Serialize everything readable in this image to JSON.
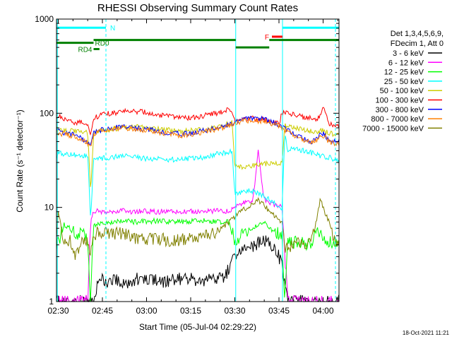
{
  "chart_data": {
    "type": "line",
    "title": "RHESSI Observing Summary Count Rates",
    "xlabel": "Start Time (05-Jul-04 02:29:22)",
    "ylabel": "Count Rate (s⁻¹ detector⁻¹)",
    "x_ticks": [
      "02:30",
      "02:45",
      "03:00",
      "03:15",
      "03:30",
      "03:45",
      "04:00"
    ],
    "x_tick_minutes": [
      30,
      45,
      60,
      75,
      90,
      105,
      120
    ],
    "x_range_minutes": [
      29.4,
      125.4
    ],
    "y_scale": "log",
    "ylim": [
      1,
      1000
    ],
    "y_ticks": [
      1,
      10,
      100,
      1000
    ],
    "y_tick_labels": [
      "1",
      "10",
      "100",
      "1000"
    ],
    "footer": "18-Oct-2021 11:21",
    "legend_header": [
      "Det 1,3,4,5,6,9,",
      "FDecim 1, Att 0"
    ],
    "legend_position": "right",
    "series": [
      {
        "name": "3 - 6 keV",
        "color": "#000000",
        "x": [
          29.4,
          40,
          41,
          42,
          44,
          46,
          50,
          54,
          58,
          62,
          66,
          70,
          74,
          78,
          82,
          86,
          88,
          89,
          90,
          92,
          94,
          96,
          98,
          100,
          102,
          104,
          106,
          108
        ],
        "y": [
          1,
          1,
          1,
          1,
          1.8,
          1.6,
          1.7,
          1.6,
          1.8,
          1.7,
          1.6,
          1.7,
          1.8,
          1.6,
          1.7,
          1.8,
          2.2,
          2.6,
          3,
          3.4,
          3.6,
          3.8,
          4.2,
          4.5,
          4,
          3.5,
          2.5,
          1
        ]
      },
      {
        "name": "6 - 12 keV",
        "color": "#ff00ff",
        "x": [
          29.4,
          30,
          31,
          39,
          40,
          41,
          42,
          44,
          48,
          52,
          56,
          60,
          64,
          68,
          72,
          76,
          80,
          84,
          88,
          89,
          90,
          92,
          94,
          96,
          97,
          98,
          99,
          100,
          101,
          102,
          104,
          106,
          108,
          122
        ],
        "y": [
          1,
          1,
          1,
          1,
          1,
          6.8,
          9,
          9.1,
          9,
          9.2,
          9,
          9.1,
          9,
          9.2,
          9,
          9.1,
          9,
          9.2,
          9,
          9.5,
          10,
          11,
          11.5,
          12,
          20,
          40,
          20,
          12,
          11.5,
          11,
          10.5,
          10,
          1,
          1
        ]
      },
      {
        "name": "12 - 25 keV",
        "color": "#00ff00",
        "x": [
          29.4,
          32,
          34,
          36,
          38,
          40,
          41,
          42,
          44,
          48,
          52,
          56,
          60,
          64,
          68,
          72,
          76,
          80,
          84,
          88,
          90,
          92,
          94,
          96,
          98,
          100,
          102,
          104,
          106,
          107,
          108,
          112,
          116,
          118,
          120,
          122,
          124
        ],
        "y": [
          3.8,
          6.5,
          6,
          5,
          6,
          4.5,
          1,
          6.5,
          6.8,
          7,
          7.2,
          7,
          7.1,
          7.2,
          7,
          7,
          7.1,
          7.2,
          7,
          7,
          4.5,
          5,
          5.5,
          6,
          6.5,
          7,
          6,
          5.5,
          5,
          1,
          4.2,
          4.3,
          4,
          6,
          4.5,
          4.2,
          4.4
        ]
      },
      {
        "name": "25 - 50 keV",
        "color": "#00ffff",
        "x": [
          29.4,
          30,
          32,
          36,
          38,
          40,
          41,
          42,
          44,
          48,
          52,
          56,
          60,
          64,
          68,
          72,
          76,
          80,
          84,
          88,
          89,
          90,
          92,
          94,
          96,
          98,
          100,
          102,
          104,
          106,
          107,
          108,
          110,
          114,
          118,
          122,
          124
        ],
        "y": [
          35,
          38,
          37,
          36,
          35,
          36,
          7,
          33,
          33,
          34,
          35,
          34,
          33,
          33,
          32,
          33,
          33,
          34,
          37,
          38,
          41,
          14,
          14.5,
          15,
          15,
          14,
          13,
          12,
          11,
          9,
          60,
          40,
          42,
          40,
          36,
          34,
          32
        ]
      },
      {
        "name": "50 - 100 keV",
        "color": "#cccc00",
        "x": [
          29.4,
          31,
          33,
          36,
          38,
          40,
          41,
          42,
          44,
          48,
          52,
          56,
          60,
          64,
          68,
          72,
          76,
          80,
          84,
          88,
          89,
          90,
          92,
          94,
          96,
          98,
          100,
          102,
          104,
          106,
          107,
          108,
          110,
          114,
          118,
          120,
          122,
          124
        ],
        "y": [
          68,
          66,
          65,
          64,
          63,
          62,
          15,
          62,
          64,
          68,
          70,
          72,
          70,
          68,
          66,
          64,
          66,
          68,
          72,
          78,
          85,
          27,
          27,
          27.5,
          28,
          28,
          29,
          29,
          29,
          29,
          75,
          72,
          70,
          66,
          64,
          65,
          62,
          60
        ]
      },
      {
        "name": "100 - 300 keV",
        "color": "#ff0000",
        "x": [
          29.4,
          30,
          32,
          34,
          36,
          38,
          40,
          41,
          42,
          44,
          48,
          52,
          56,
          60,
          64,
          68,
          72,
          76,
          80,
          84,
          88,
          89,
          90,
          92,
          96,
          100,
          104,
          105,
          106,
          108,
          110,
          114,
          118,
          120,
          121,
          122,
          124
        ],
        "y": [
          85,
          95,
          88,
          82,
          80,
          82,
          78,
          60,
          88,
          95,
          100,
          104,
          105,
          102,
          96,
          92,
          88,
          90,
          95,
          100,
          112,
          100,
          82,
          86,
          88,
          85,
          80,
          78,
          100,
          100,
          96,
          90,
          86,
          110,
          100,
          78,
          75
        ]
      },
      {
        "name": "300 - 800 keV",
        "color": "#0000ff",
        "x": [
          29.4,
          32,
          36,
          38,
          40,
          41,
          42,
          44,
          48,
          52,
          56,
          60,
          64,
          68,
          72,
          76,
          80,
          84,
          88,
          90,
          92,
          96,
          100,
          104,
          108,
          112,
          116,
          118,
          120,
          122,
          124
        ],
        "y": [
          65,
          62,
          58,
          54,
          50,
          45,
          62,
          66,
          70,
          72,
          70,
          68,
          64,
          62,
          60,
          62,
          66,
          70,
          76,
          80,
          85,
          88,
          86,
          78,
          66,
          56,
          50,
          55,
          62,
          52,
          50
        ]
      },
      {
        "name": "800 - 7000 keV",
        "color": "#ff8000",
        "x": [
          29.4,
          32,
          36,
          38,
          40,
          41,
          42,
          44,
          48,
          52,
          56,
          60,
          64,
          68,
          72,
          76,
          80,
          84,
          88,
          90,
          92,
          96,
          100,
          104,
          108,
          112,
          116,
          118,
          120,
          122,
          124
        ],
        "y": [
          62,
          60,
          56,
          52,
          48,
          44,
          60,
          64,
          68,
          70,
          68,
          66,
          62,
          60,
          58,
          60,
          64,
          68,
          74,
          78,
          82,
          84,
          82,
          76,
          64,
          54,
          48,
          52,
          58,
          50,
          48
        ]
      },
      {
        "name": "7000 - 15000 keV",
        "color": "#808000",
        "x": [
          29.4,
          30,
          32,
          34,
          36,
          38,
          40,
          41,
          42,
          44,
          48,
          52,
          56,
          60,
          64,
          68,
          72,
          76,
          80,
          84,
          88,
          90,
          92,
          94,
          96,
          98,
          100,
          102,
          104,
          106,
          107,
          108,
          110,
          114,
          116,
          118,
          119,
          120,
          122,
          124
        ],
        "y": [
          5,
          9,
          4,
          4.5,
          3,
          4.8,
          4.2,
          3.5,
          5,
          5.5,
          5.2,
          5.3,
          4.8,
          4.5,
          4.6,
          4.5,
          4.5,
          4.8,
          5,
          5.5,
          7,
          8,
          9,
          10,
          11,
          12,
          10.5,
          9,
          8,
          7,
          3.5,
          3.8,
          4,
          4.2,
          4.2,
          8,
          12,
          10,
          7,
          4.5
        ]
      }
    ],
    "state_bars": [
      {
        "label": "N",
        "color": "#00ffff",
        "x0": 29.4,
        "x1": 46.2,
        "level": 810
      },
      {
        "label": "",
        "color": "#00ffff",
        "x0": 106.2,
        "x1": 125.4,
        "level": 810
      },
      {
        "label": "F",
        "color": "#ff0000",
        "x0": 102.6,
        "x1": 106.2,
        "level": 650
      },
      {
        "label": "RD0",
        "color": "#008000",
        "x0": 29.4,
        "x1": 42,
        "level": 560
      },
      {
        "label": "",
        "color": "#008000",
        "x0": 42,
        "x1": 90.3,
        "level": 600
      },
      {
        "label": "",
        "color": "#008000",
        "x0": 90.3,
        "x1": 101.7,
        "level": 500
      },
      {
        "label": "",
        "color": "#008000",
        "x0": 101.7,
        "x1": 125.4,
        "level": 600
      },
      {
        "label": "RD4",
        "color": "#008000",
        "x0": 42,
        "x1": 44,
        "level": 480
      }
    ],
    "boundary_lines": [
      {
        "color": "#00ffff",
        "style": "solid",
        "x": 29.7
      },
      {
        "color": "#00ffff",
        "style": "dashed",
        "x": 46.2
      },
      {
        "color": "#00ffff",
        "style": "solid",
        "x": 90.3
      },
      {
        "color": "#00ffff",
        "style": "solid",
        "x": 106.2
      },
      {
        "color": "#00ffff",
        "style": "dashed",
        "x": 124.2
      }
    ]
  }
}
